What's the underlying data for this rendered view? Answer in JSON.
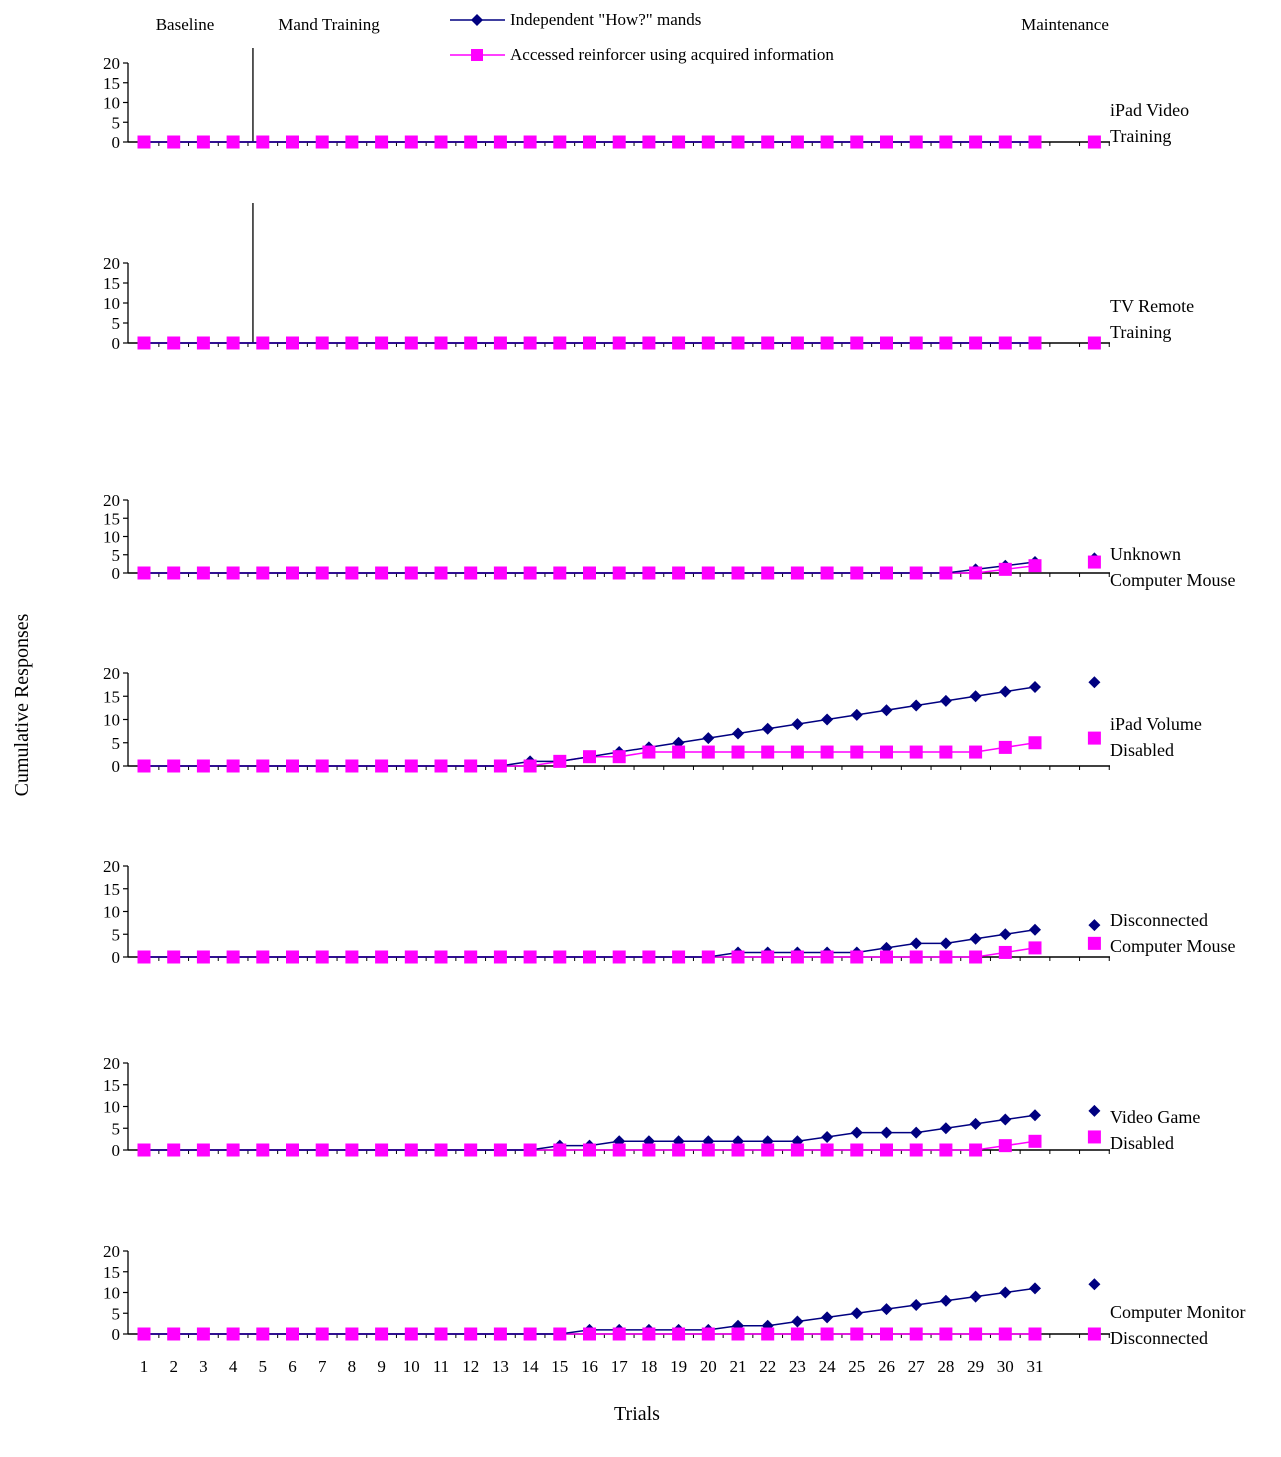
{
  "chart_data": {
    "type": "line",
    "phase_labels": [
      "Baseline",
      "Mand Training",
      "Maintenance"
    ],
    "legend": [
      {
        "name": "Independent \"How?\" mands",
        "color": "#000080",
        "marker": "diamond"
      },
      {
        "name": "Accessed reinforcer using acquired information",
        "color": "#ff00ff",
        "marker": "square"
      }
    ],
    "xlabel": "Trials",
    "ylabel": "Cumulative Responses",
    "x_ticks": [
      1,
      2,
      3,
      4,
      5,
      6,
      7,
      8,
      9,
      10,
      11,
      12,
      13,
      14,
      15,
      16,
      17,
      18,
      19,
      20,
      21,
      22,
      23,
      24,
      25,
      26,
      27,
      28,
      29,
      30,
      31
    ],
    "y_ticks": [
      0,
      5,
      10,
      15,
      20
    ],
    "ylim": [
      0,
      20
    ],
    "panels": [
      {
        "label": [
          "iPad Video",
          "Training"
        ],
        "phase_line_after": 4,
        "mands": [
          0,
          0,
          0,
          0,
          0,
          0,
          0,
          0,
          0,
          0,
          0,
          0,
          0,
          0,
          0,
          0,
          0,
          0,
          0,
          0,
          0,
          0,
          0,
          0,
          0,
          0,
          0,
          0,
          0,
          0,
          0
        ],
        "reinforcer": [
          0,
          0,
          0,
          0,
          0,
          0,
          0,
          0,
          0,
          0,
          0,
          0,
          0,
          0,
          0,
          0,
          0,
          0,
          0,
          0,
          0,
          0,
          0,
          0,
          0,
          0,
          0,
          0,
          0,
          0,
          0
        ],
        "maint_mands": 0,
        "maint_reinforcer": 0
      },
      {
        "label": [
          "TV Remote",
          "Training"
        ],
        "phase_line_after": 4,
        "mands": [
          0,
          0,
          0,
          0,
          0,
          0,
          0,
          0,
          0,
          0,
          0,
          0,
          0,
          0,
          0,
          0,
          0,
          0,
          0,
          0,
          0,
          0,
          0,
          0,
          0,
          0,
          0,
          0,
          0,
          0,
          0
        ],
        "reinforcer": [
          0,
          0,
          0,
          0,
          0,
          0,
          0,
          0,
          0,
          0,
          0,
          0,
          0,
          0,
          0,
          0,
          0,
          0,
          0,
          0,
          0,
          0,
          0,
          0,
          0,
          0,
          0,
          0,
          0,
          0,
          0
        ],
        "maint_mands": 0,
        "maint_reinforcer": 0
      },
      {
        "label": [
          "Unknown",
          "Computer Mouse"
        ],
        "mands": [
          0,
          0,
          0,
          0,
          0,
          0,
          0,
          0,
          0,
          0,
          0,
          0,
          0,
          0,
          0,
          0,
          0,
          0,
          0,
          0,
          0,
          0,
          0,
          0,
          0,
          0,
          0,
          0,
          1,
          2,
          3
        ],
        "reinforcer": [
          0,
          0,
          0,
          0,
          0,
          0,
          0,
          0,
          0,
          0,
          0,
          0,
          0,
          0,
          0,
          0,
          0,
          0,
          0,
          0,
          0,
          0,
          0,
          0,
          0,
          0,
          0,
          0,
          0,
          1,
          2
        ],
        "maint_mands": 4,
        "maint_reinforcer": 3
      },
      {
        "label": [
          "iPad Volume",
          "Disabled"
        ],
        "mands": [
          0,
          0,
          0,
          0,
          0,
          0,
          0,
          0,
          0,
          0,
          0,
          0,
          0,
          1,
          1,
          2,
          3,
          4,
          5,
          6,
          7,
          8,
          9,
          10,
          11,
          12,
          13,
          14,
          15,
          16,
          17
        ],
        "reinforcer": [
          0,
          0,
          0,
          0,
          0,
          0,
          0,
          0,
          0,
          0,
          0,
          0,
          0,
          0,
          1,
          2,
          2,
          3,
          3,
          3,
          3,
          3,
          3,
          3,
          3,
          3,
          3,
          3,
          3,
          4,
          5
        ],
        "maint_mands": 18,
        "maint_reinforcer": 6
      },
      {
        "label": [
          "Disconnected",
          "Computer Mouse"
        ],
        "mands": [
          0,
          0,
          0,
          0,
          0,
          0,
          0,
          0,
          0,
          0,
          0,
          0,
          0,
          0,
          0,
          0,
          0,
          0,
          0,
          0,
          1,
          1,
          1,
          1,
          1,
          2,
          3,
          3,
          4,
          5,
          6
        ],
        "reinforcer": [
          0,
          0,
          0,
          0,
          0,
          0,
          0,
          0,
          0,
          0,
          0,
          0,
          0,
          0,
          0,
          0,
          0,
          0,
          0,
          0,
          0,
          0,
          0,
          0,
          0,
          0,
          0,
          0,
          0,
          1,
          2
        ],
        "maint_mands": 7,
        "maint_reinforcer": 3
      },
      {
        "label": [
          "Video Game",
          "Disabled"
        ],
        "mands": [
          0,
          0,
          0,
          0,
          0,
          0,
          0,
          0,
          0,
          0,
          0,
          0,
          0,
          0,
          1,
          1,
          2,
          2,
          2,
          2,
          2,
          2,
          2,
          3,
          4,
          4,
          4,
          5,
          6,
          7,
          8
        ],
        "reinforcer": [
          0,
          0,
          0,
          0,
          0,
          0,
          0,
          0,
          0,
          0,
          0,
          0,
          0,
          0,
          0,
          0,
          0,
          0,
          0,
          0,
          0,
          0,
          0,
          0,
          0,
          0,
          0,
          0,
          0,
          1,
          2
        ],
        "maint_mands": 9,
        "maint_reinforcer": 3
      },
      {
        "label": [
          "Computer Monitor",
          "Disconnected"
        ],
        "mands": [
          0,
          0,
          0,
          0,
          0,
          0,
          0,
          0,
          0,
          0,
          0,
          0,
          0,
          0,
          0,
          1,
          1,
          1,
          1,
          1,
          2,
          2,
          3,
          4,
          5,
          6,
          7,
          8,
          9,
          10,
          11
        ],
        "reinforcer": [
          0,
          0,
          0,
          0,
          0,
          0,
          0,
          0,
          0,
          0,
          0,
          0,
          0,
          0,
          0,
          0,
          0,
          0,
          0,
          0,
          0,
          0,
          0,
          0,
          0,
          0,
          0,
          0,
          0,
          0,
          0
        ],
        "maint_mands": 12,
        "maint_reinforcer": 0
      }
    ]
  }
}
